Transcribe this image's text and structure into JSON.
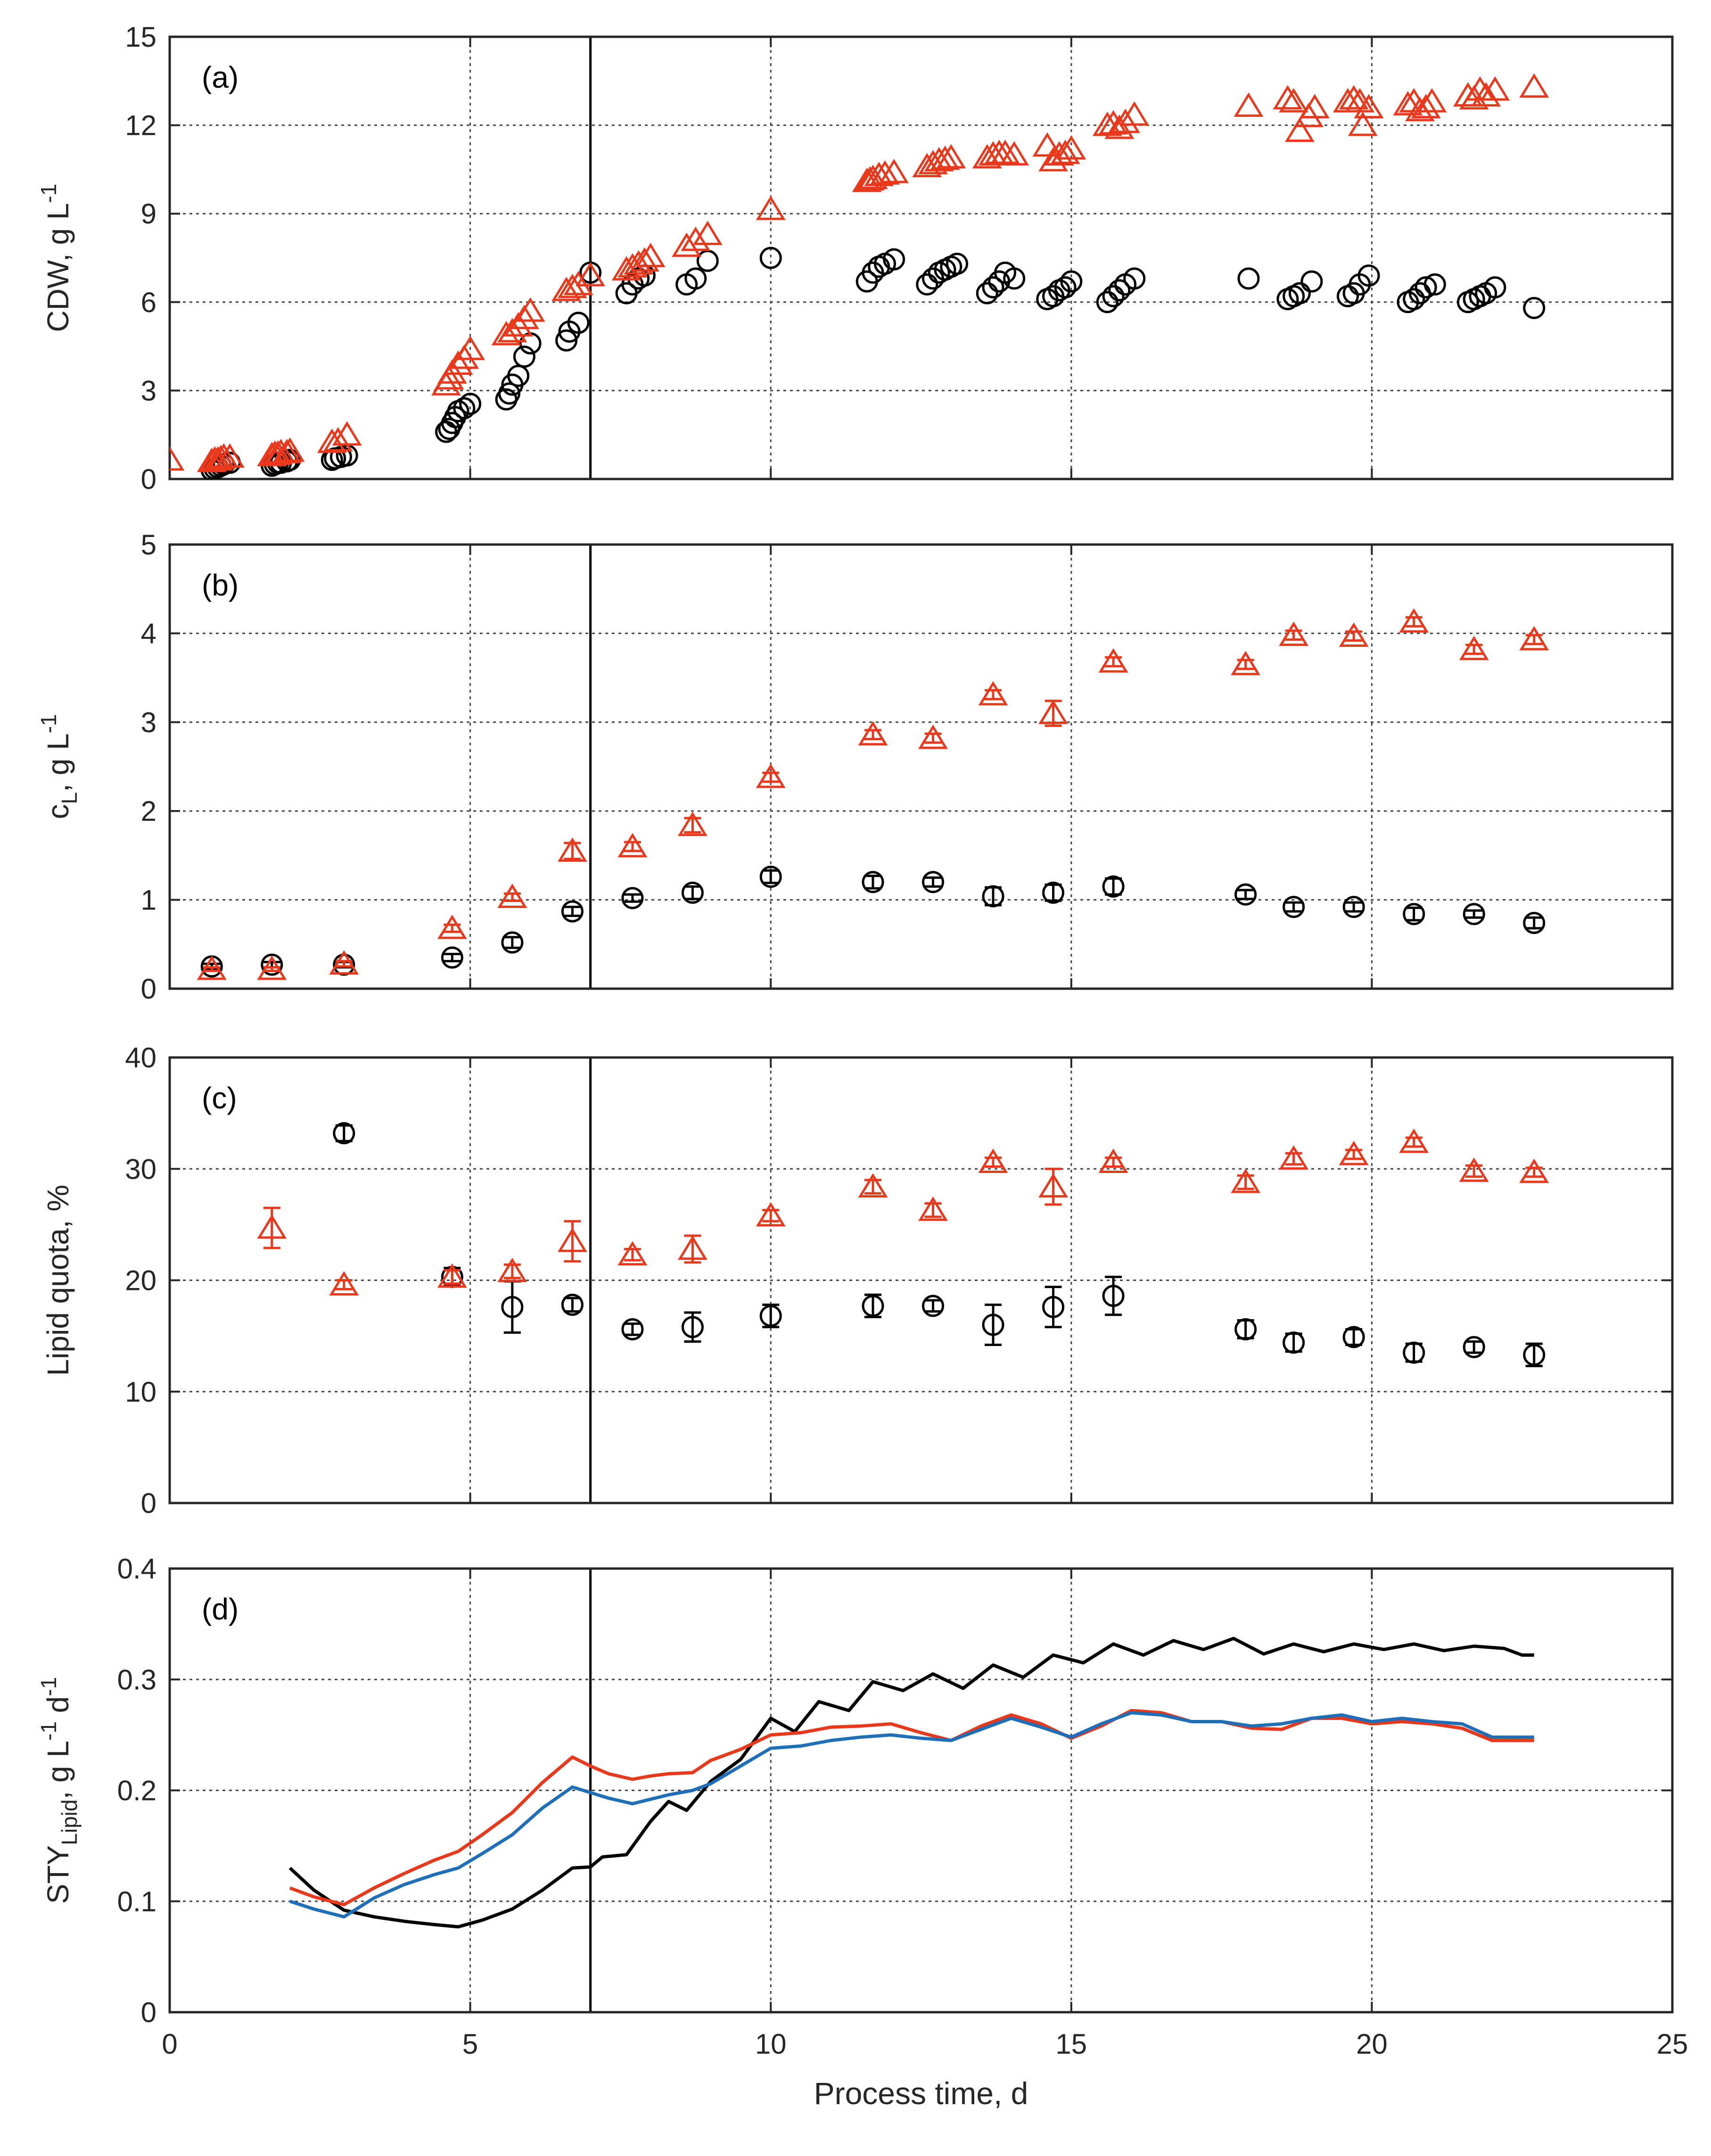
{
  "colors": {
    "reactor_black": "#000000",
    "reactor_red": "#e8391d",
    "reactor_blue": "#1f6fb8"
  },
  "chart_data": [
    {
      "type": "scatter",
      "panel_label": "(a)",
      "ylabel": "CDW, g L",
      "ylabel_sup": "-1",
      "ylim": [
        0,
        15
      ],
      "yticks": [
        "0",
        "3",
        "6",
        "9",
        "12",
        "15"
      ],
      "xlim": [
        0,
        25
      ],
      "vertical_line_x": 7,
      "series": [
        {
          "name": "black circles",
          "marker": "circle",
          "color": "#000000",
          "x": [
            0.7,
            0.75,
            0.8,
            0.85,
            0.9,
            1.0,
            1.7,
            1.75,
            1.8,
            1.85,
            1.95,
            2.0,
            2.7,
            2.75,
            2.85,
            2.95,
            4.6,
            4.65,
            4.7,
            4.75,
            4.8,
            4.9,
            5.0,
            5.6,
            5.65,
            5.7,
            5.8,
            5.9,
            6.0,
            6.6,
            6.65,
            6.8,
            7.0,
            7.6,
            7.7,
            7.8,
            7.9,
            8.6,
            8.75,
            8.95,
            10.0,
            11.6,
            11.7,
            11.8,
            11.9,
            12.05,
            12.6,
            12.7,
            12.8,
            12.9,
            13.0,
            13.1,
            13.6,
            13.7,
            13.8,
            13.9,
            14.05,
            14.6,
            14.7,
            14.8,
            14.9,
            15.0,
            15.6,
            15.7,
            15.8,
            15.9,
            16.05,
            17.95,
            18.6,
            18.7,
            18.8,
            19.0,
            19.6,
            19.7,
            19.8,
            19.95,
            20.6,
            20.7,
            20.8,
            20.9,
            21.05,
            21.6,
            21.7,
            21.8,
            21.9,
            22.05,
            22.7
          ],
          "y": [
            0.3,
            0.35,
            0.4,
            0.45,
            0.5,
            0.55,
            0.45,
            0.5,
            0.55,
            0.55,
            0.6,
            0.65,
            0.65,
            0.7,
            0.75,
            0.8,
            1.6,
            1.7,
            1.9,
            2.1,
            2.3,
            2.4,
            2.55,
            2.7,
            2.9,
            3.2,
            3.5,
            4.15,
            4.6,
            4.7,
            5.0,
            5.3,
            7.0,
            6.3,
            6.6,
            6.8,
            6.9,
            6.6,
            6.8,
            7.4,
            7.5,
            6.7,
            7.0,
            7.2,
            7.3,
            7.45,
            6.6,
            6.8,
            7.0,
            7.1,
            7.2,
            7.3,
            6.3,
            6.5,
            6.7,
            7.0,
            6.8,
            6.1,
            6.2,
            6.4,
            6.5,
            6.7,
            6.0,
            6.2,
            6.4,
            6.6,
            6.8,
            6.8,
            6.1,
            6.2,
            6.3,
            6.7,
            6.2,
            6.3,
            6.6,
            6.9,
            6.0,
            6.1,
            6.3,
            6.5,
            6.6,
            6.0,
            6.1,
            6.2,
            6.3,
            6.5,
            5.8
          ]
        },
        {
          "name": "red triangles",
          "marker": "triangle",
          "color": "#e8391d",
          "x": [
            0.0,
            0.7,
            0.75,
            0.8,
            0.85,
            0.9,
            1.0,
            1.7,
            1.75,
            1.8,
            1.85,
            1.95,
            2.0,
            2.7,
            2.8,
            2.95,
            4.6,
            4.65,
            4.7,
            4.8,
            4.9,
            5.0,
            5.6,
            5.7,
            5.8,
            5.9,
            6.0,
            6.6,
            6.7,
            6.8,
            7.0,
            7.6,
            7.7,
            7.8,
            7.9,
            8.0,
            8.6,
            8.75,
            8.95,
            10.0,
            11.6,
            11.65,
            11.7,
            11.8,
            11.9,
            12.05,
            12.6,
            12.7,
            12.8,
            12.9,
            13.0,
            13.6,
            13.7,
            13.8,
            13.9,
            14.05,
            14.6,
            14.7,
            14.8,
            14.9,
            15.0,
            15.6,
            15.7,
            15.8,
            15.9,
            16.05,
            17.95,
            18.6,
            18.7,
            18.8,
            18.95,
            19.05,
            19.6,
            19.7,
            19.8,
            19.85,
            19.95,
            20.6,
            20.7,
            20.8,
            20.9,
            21.0,
            21.6,
            21.7,
            21.8,
            21.9,
            22.05,
            22.7
          ],
          "y": [
            0.65,
            0.6,
            0.65,
            0.65,
            0.7,
            0.75,
            0.75,
            0.8,
            0.85,
            0.85,
            0.9,
            0.9,
            0.95,
            1.25,
            1.3,
            1.5,
            3.2,
            3.4,
            3.6,
            3.9,
            4.1,
            4.4,
            4.9,
            5.0,
            5.2,
            5.45,
            5.7,
            6.4,
            6.5,
            6.6,
            6.9,
            7.1,
            7.2,
            7.3,
            7.4,
            7.55,
            7.9,
            8.1,
            8.3,
            9.15,
            10.1,
            10.15,
            10.2,
            10.3,
            10.35,
            10.4,
            10.6,
            10.7,
            10.8,
            10.85,
            10.9,
            10.9,
            11.0,
            11.05,
            11.05,
            11.0,
            11.3,
            10.8,
            11.0,
            11.05,
            11.2,
            12.0,
            12.05,
            11.9,
            12.1,
            12.35,
            12.65,
            12.9,
            12.8,
            11.8,
            12.3,
            12.6,
            12.8,
            12.9,
            12.8,
            12.0,
            12.6,
            12.7,
            12.8,
            12.5,
            12.6,
            12.8,
            13.0,
            12.9,
            13.2,
            13.0,
            13.2,
            13.3
          ]
        }
      ]
    },
    {
      "type": "scatter",
      "panel_label": "(b)",
      "ylabel": "c",
      "ylabel_sub": "L",
      "ylabel_suffix": ", g L",
      "ylabel_sup": "-1",
      "ylim": [
        0,
        5
      ],
      "yticks": [
        "0",
        "1",
        "2",
        "3",
        "4",
        "5"
      ],
      "xlim": [
        0,
        25
      ],
      "vertical_line_x": 7,
      "series": [
        {
          "name": "black circles",
          "marker": "circle",
          "color": "#000000",
          "x": [
            0.7,
            1.7,
            2.9,
            4.7,
            5.7,
            6.7,
            7.7,
            8.7,
            10.0,
            11.7,
            12.7,
            13.7,
            14.7,
            15.7,
            17.9,
            18.7,
            19.7,
            20.7,
            21.7,
            22.7
          ],
          "y": [
            0.25,
            0.27,
            0.27,
            0.35,
            0.52,
            0.87,
            1.02,
            1.08,
            1.26,
            1.2,
            1.2,
            1.04,
            1.08,
            1.15,
            1.06,
            0.92,
            0.92,
            0.84,
            0.84,
            0.74
          ],
          "err": [
            0.03,
            0.03,
            0.03,
            0.04,
            0.06,
            0.05,
            0.04,
            0.07,
            0.07,
            0.07,
            0.05,
            0.1,
            0.09,
            0.09,
            0.05,
            0.05,
            0.05,
            0.07,
            0.04,
            0.06
          ]
        },
        {
          "name": "red triangles",
          "marker": "triangle",
          "color": "#e8391d",
          "x": [
            0.7,
            1.7,
            2.9,
            4.7,
            5.7,
            6.7,
            7.7,
            8.7,
            10.0,
            11.7,
            12.7,
            13.7,
            14.7,
            15.7,
            17.9,
            18.7,
            19.7,
            20.7,
            21.7,
            22.7
          ],
          "y": [
            0.22,
            0.22,
            0.28,
            0.68,
            1.03,
            1.55,
            1.6,
            1.84,
            2.38,
            2.86,
            2.82,
            3.31,
            3.1,
            3.68,
            3.65,
            3.98,
            3.97,
            4.13,
            3.82,
            3.93
          ],
          "err": [
            0.02,
            0.02,
            0.03,
            0.04,
            0.04,
            0.09,
            0.05,
            0.08,
            0.05,
            0.05,
            0.05,
            0.05,
            0.14,
            0.05,
            0.05,
            0.05,
            0.05,
            0.05,
            0.05,
            0.05
          ]
        }
      ]
    },
    {
      "type": "scatter",
      "panel_label": "(c)",
      "ylabel": "Lipid quota, %",
      "ylim": [
        0,
        40
      ],
      "yticks": [
        "0",
        "10",
        "20",
        "30",
        "40"
      ],
      "xlim": [
        0,
        25
      ],
      "vertical_line_x": 7,
      "series": [
        {
          "name": "black circles",
          "marker": "circle",
          "color": "#000000",
          "x": [
            2.9,
            4.7,
            5.7,
            6.7,
            7.7,
            8.7,
            10.0,
            11.7,
            12.7,
            13.7,
            14.7,
            15.7,
            17.9,
            18.7,
            19.7,
            20.7,
            21.7,
            22.7
          ],
          "y": [
            33.2,
            20.3,
            17.6,
            17.8,
            15.6,
            15.8,
            16.8,
            17.7,
            17.7,
            16.0,
            17.6,
            18.6,
            15.6,
            14.4,
            14.9,
            13.5,
            14.0,
            13.3
          ],
          "err": [
            0.7,
            0.8,
            2.3,
            0.6,
            0.5,
            1.3,
            1.0,
            1.0,
            0.5,
            1.8,
            1.8,
            1.7,
            0.8,
            0.8,
            0.7,
            0.8,
            0.5,
            1.0
          ]
        },
        {
          "name": "red triangles",
          "marker": "triangle",
          "color": "#e8391d",
          "x": [
            1.7,
            2.9,
            4.7,
            5.7,
            6.7,
            7.7,
            8.7,
            10.0,
            11.7,
            12.7,
            13.7,
            14.7,
            15.7,
            17.9,
            18.7,
            19.7,
            20.7,
            21.7,
            22.7
          ],
          "y": [
            24.7,
            19.6,
            20.3,
            20.8,
            23.5,
            22.3,
            22.8,
            25.8,
            28.4,
            26.3,
            30.6,
            28.4,
            30.6,
            28.8,
            30.9,
            31.3,
            32.4,
            29.8,
            29.7
          ],
          "err": [
            1.8,
            0.4,
            0.6,
            0.6,
            1.8,
            0.5,
            1.2,
            0.5,
            0.6,
            0.6,
            0.4,
            1.6,
            0.4,
            0.6,
            0.5,
            0.4,
            0.4,
            0.5,
            0.4
          ]
        }
      ]
    },
    {
      "type": "line",
      "panel_label": "(d)",
      "ylabel": "STY",
      "ylabel_sub": "Lipid",
      "ylabel_suffix": ", g L",
      "ylabel_sup": "-1",
      "ylabel_suffix2": " d",
      "ylabel_sup2": "-1",
      "ylim": [
        0,
        0.4
      ],
      "yticks": [
        "0",
        "0.1",
        "0.2",
        "0.3",
        "0.4"
      ],
      "xlabel": "Process time, d",
      "xlim": [
        0,
        25
      ],
      "xticks": [
        "0",
        "5",
        "10",
        "15",
        "20",
        "25"
      ],
      "vertical_line_x": 7,
      "series": [
        {
          "name": "black line",
          "color": "#000000",
          "x": [
            2.0,
            2.4,
            2.9,
            3.4,
            3.9,
            4.4,
            4.8,
            5.2,
            5.7,
            6.2,
            6.7,
            7.0,
            7.2,
            7.6,
            8.0,
            8.3,
            8.6,
            9.0,
            9.5,
            10.0,
            10.4,
            10.8,
            11.3,
            11.7,
            12.2,
            12.7,
            13.2,
            13.7,
            14.2,
            14.7,
            15.2,
            15.7,
            16.2,
            16.7,
            17.2,
            17.7,
            18.2,
            18.7,
            19.2,
            19.7,
            20.2,
            20.7,
            21.2,
            21.7,
            22.2,
            22.5,
            22.7
          ],
          "y": [
            0.13,
            0.11,
            0.092,
            0.086,
            0.082,
            0.079,
            0.077,
            0.083,
            0.093,
            0.11,
            0.13,
            0.131,
            0.14,
            0.142,
            0.172,
            0.19,
            0.182,
            0.208,
            0.228,
            0.265,
            0.253,
            0.28,
            0.272,
            0.298,
            0.29,
            0.305,
            0.292,
            0.313,
            0.302,
            0.322,
            0.315,
            0.332,
            0.322,
            0.335,
            0.327,
            0.337,
            0.323,
            0.332,
            0.325,
            0.332,
            0.327,
            0.332,
            0.326,
            0.33,
            0.328,
            0.322,
            0.322
          ]
        },
        {
          "name": "red line",
          "color": "#e8391d",
          "x": [
            2.0,
            2.4,
            2.9,
            3.4,
            3.9,
            4.4,
            4.8,
            5.2,
            5.7,
            6.2,
            6.7,
            7.0,
            7.3,
            7.7,
            8.0,
            8.3,
            8.7,
            9.0,
            9.5,
            10.0,
            10.5,
            11.0,
            11.5,
            12.0,
            12.5,
            13.0,
            13.5,
            14.0,
            14.5,
            15.0,
            15.5,
            16.0,
            16.5,
            17.0,
            17.5,
            18.0,
            18.5,
            19.0,
            19.5,
            20.0,
            20.5,
            21.0,
            21.5,
            22.0,
            22.5,
            22.7
          ],
          "y": [
            0.112,
            0.104,
            0.097,
            0.112,
            0.125,
            0.137,
            0.145,
            0.16,
            0.18,
            0.207,
            0.23,
            0.222,
            0.215,
            0.21,
            0.213,
            0.215,
            0.216,
            0.227,
            0.237,
            0.25,
            0.252,
            0.257,
            0.258,
            0.26,
            0.252,
            0.245,
            0.258,
            0.268,
            0.26,
            0.247,
            0.258,
            0.272,
            0.27,
            0.262,
            0.262,
            0.256,
            0.255,
            0.265,
            0.265,
            0.26,
            0.262,
            0.26,
            0.256,
            0.245,
            0.245,
            0.245
          ]
        },
        {
          "name": "blue line",
          "color": "#1f6fb8",
          "x": [
            2.0,
            2.4,
            2.9,
            3.4,
            3.9,
            4.4,
            4.8,
            5.2,
            5.7,
            6.2,
            6.7,
            7.0,
            7.3,
            7.7,
            8.0,
            8.3,
            8.7,
            9.0,
            9.5,
            10.0,
            10.5,
            11.0,
            11.5,
            12.0,
            12.5,
            13.0,
            13.5,
            14.0,
            14.5,
            15.0,
            15.5,
            16.0,
            16.5,
            17.0,
            17.5,
            18.0,
            18.5,
            19.0,
            19.5,
            20.0,
            20.5,
            21.0,
            21.5,
            22.0,
            22.5,
            22.7
          ],
          "y": [
            0.1,
            0.093,
            0.086,
            0.103,
            0.115,
            0.124,
            0.13,
            0.143,
            0.16,
            0.184,
            0.203,
            0.198,
            0.193,
            0.188,
            0.192,
            0.196,
            0.2,
            0.206,
            0.222,
            0.238,
            0.24,
            0.245,
            0.248,
            0.25,
            0.247,
            0.245,
            0.255,
            0.265,
            0.257,
            0.248,
            0.26,
            0.27,
            0.268,
            0.262,
            0.262,
            0.258,
            0.26,
            0.265,
            0.268,
            0.262,
            0.265,
            0.262,
            0.26,
            0.248,
            0.248,
            0.248
          ]
        }
      ]
    }
  ]
}
